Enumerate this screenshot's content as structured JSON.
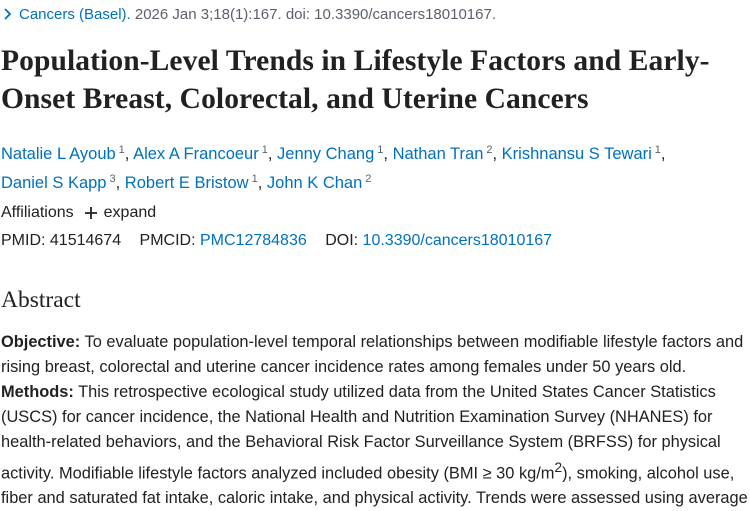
{
  "citation": {
    "journal": "Cancers (Basel).",
    "details": "2026 Jan 3;18(1):167. doi: 10.3390/cancers18010167."
  },
  "title": "Population-Level Trends in Lifestyle Factors and Early-Onset Breast, Colorectal, and Uterine Cancers",
  "authors": [
    {
      "name": "Natalie L Ayoub",
      "aff": "1"
    },
    {
      "name": "Alex A Francoeur",
      "aff": "1"
    },
    {
      "name": "Jenny Chang",
      "aff": "1"
    },
    {
      "name": "Nathan Tran",
      "aff": "2"
    },
    {
      "name": "Krishnansu S Tewari",
      "aff": "1"
    },
    {
      "name": "Daniel S Kapp",
      "aff": "3"
    },
    {
      "name": "Robert E Bristow",
      "aff": "1"
    },
    {
      "name": "John K Chan",
      "aff": "2"
    }
  ],
  "affiliations": {
    "label": "Affiliations",
    "expand": "expand"
  },
  "identifiers": {
    "pmid_label": "PMID:",
    "pmid": "41514674",
    "pmcid_label": "PMCID:",
    "pmcid": "PMC12784836",
    "doi_label": "DOI:",
    "doi": "10.3390/cancers18010167"
  },
  "abstract": {
    "heading": "Abstract",
    "objective_label": "Objective:",
    "objective": "To evaluate population-level temporal relationships between modifiable lifestyle factors and rising breast, colorectal and uterine cancer incidence rates among females under 50 years old.",
    "methods_label": "Methods:",
    "methods_1": "This retrospective ecological study utilized data from the United States Cancer Statistics (USCS) for cancer incidence, the National Health and Nutrition Examination Survey (NHANES) for health-related behaviors, and the Behavioral Risk Factor Surveillance System (BRFSS) for physical activity. Modifiable lifestyle factors analyzed included obesity (BMI ≥ 30 kg/m",
    "methods_sup": "2",
    "methods_2": "), smoking, alcohol use, fiber and saturated fat intake, caloric intake, and physical activity. Trends were assessed using average"
  },
  "icons": {
    "citation_chevron": "chevron-right-icon",
    "expand": "plus-icon"
  },
  "colors": {
    "link": "#0071bc",
    "text": "#212121",
    "muted": "#5b616b"
  }
}
